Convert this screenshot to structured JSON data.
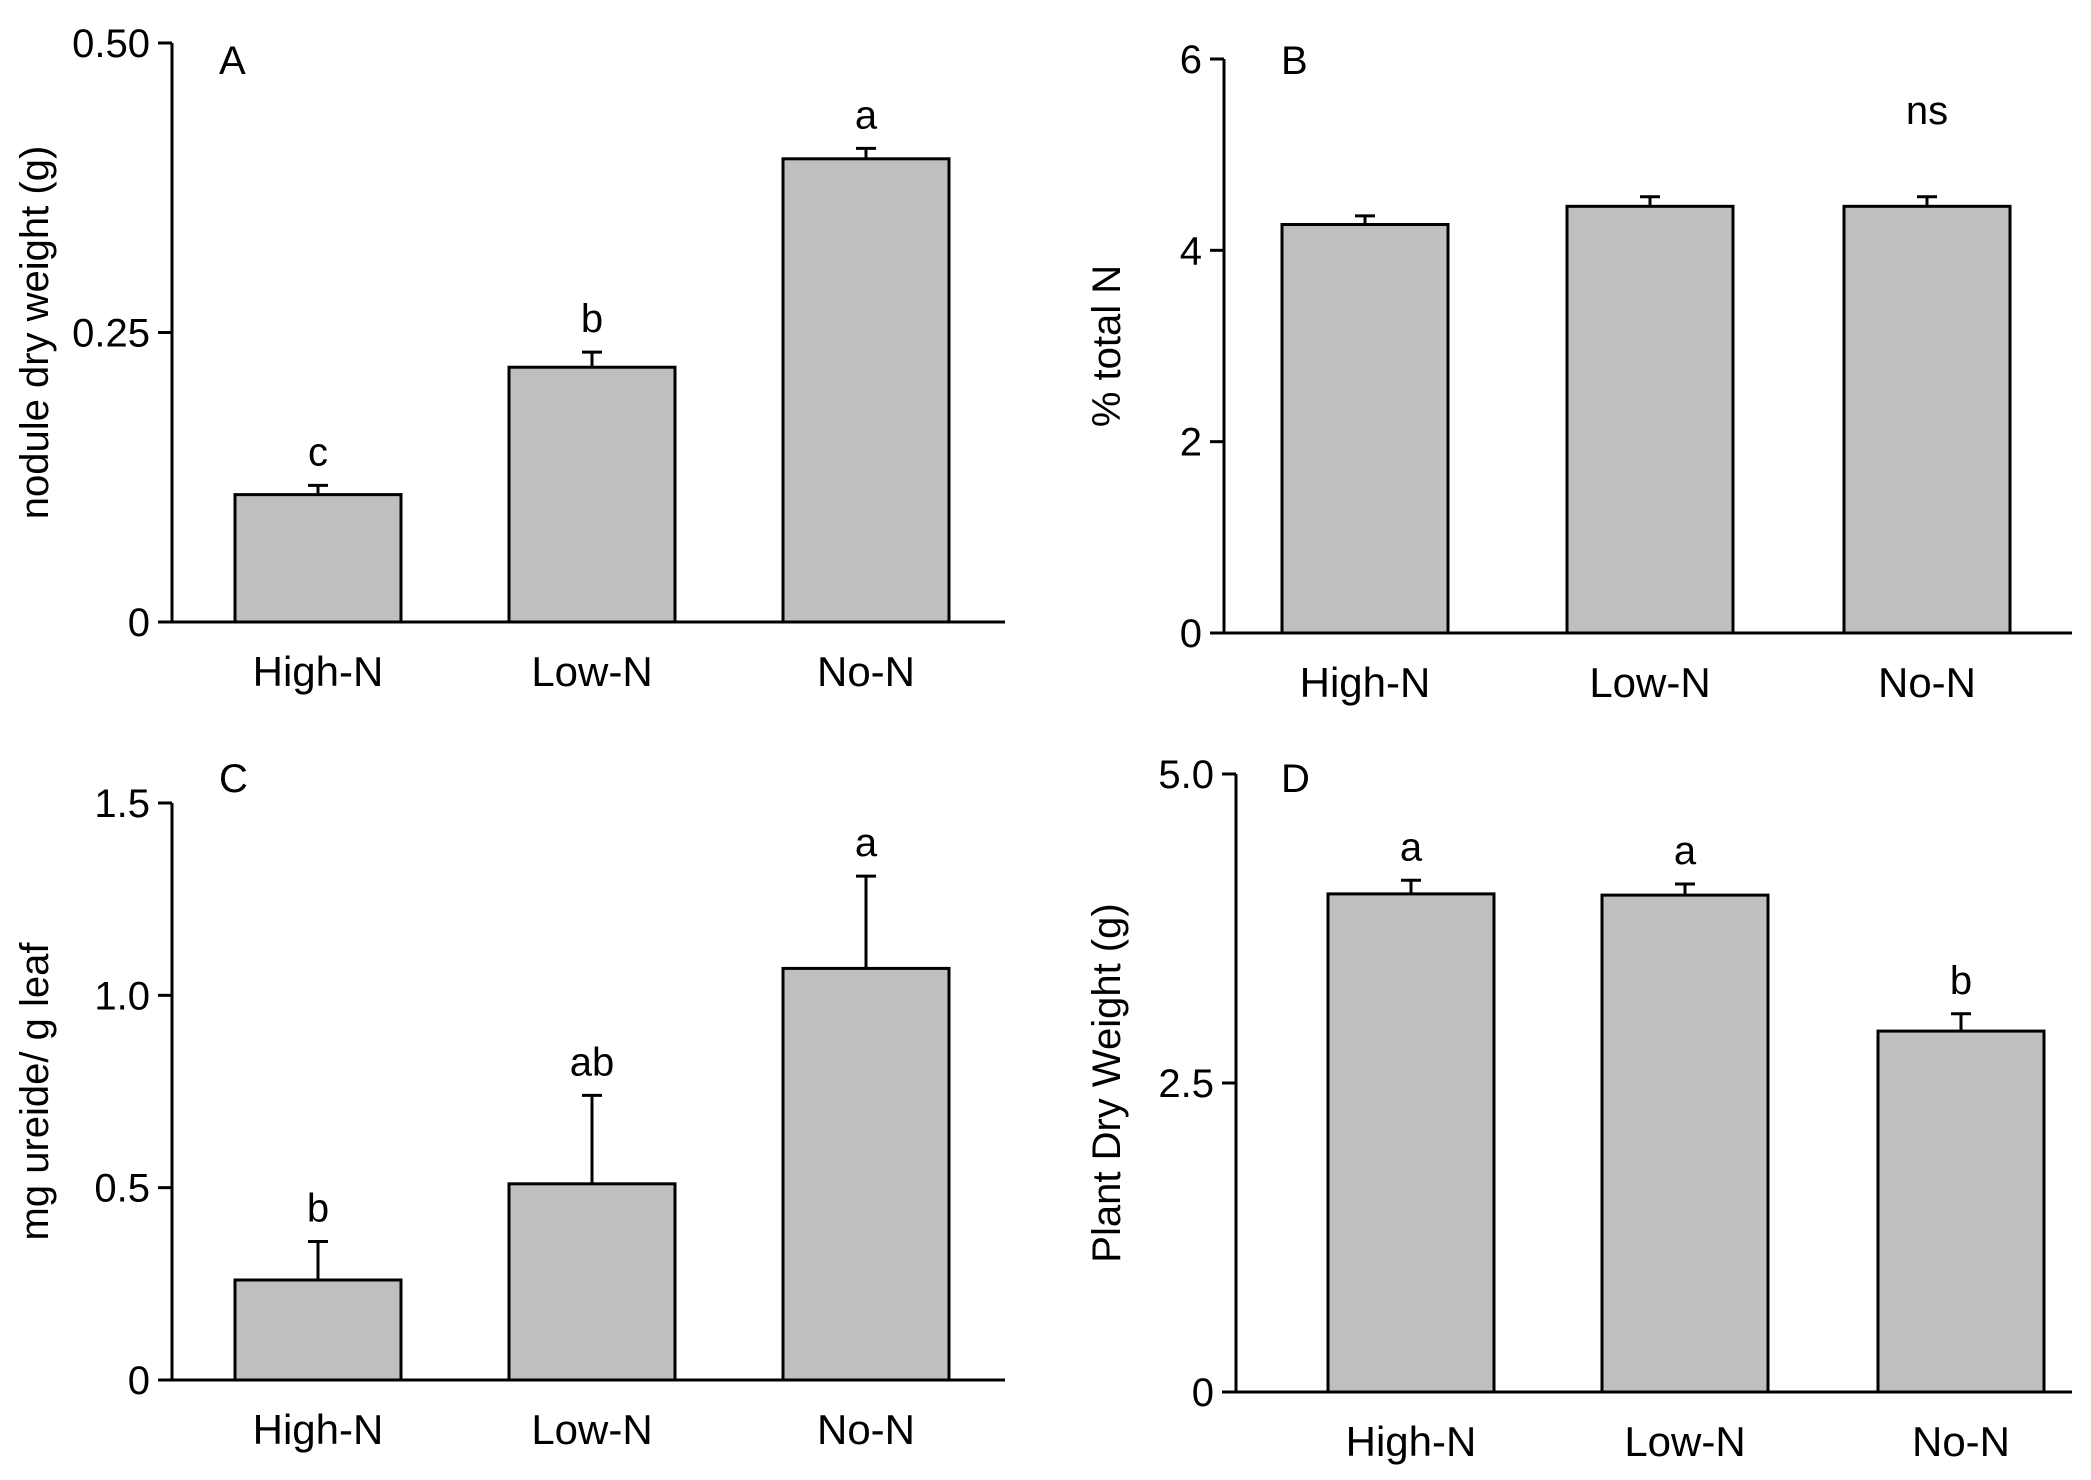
{
  "chart_data": [
    {
      "type": "bar",
      "panel": "A",
      "title": "",
      "xlabel": "",
      "ylabel": "nodule dry weight (g)",
      "categories": [
        "High-N",
        "Low-N",
        "No-N"
      ],
      "values": [
        0.11,
        0.22,
        0.4
      ],
      "errors": [
        0.008,
        0.013,
        0.009
      ],
      "significance": [
        "c",
        "b",
        "a"
      ],
      "ylim": [
        0,
        0.5
      ],
      "yticks": [
        0,
        0.25,
        0.5
      ],
      "ytick_labels": [
        "0",
        "0.25",
        "0.50"
      ],
      "grid": false
    },
    {
      "type": "bar",
      "panel": "B",
      "title": "",
      "xlabel": "",
      "ylabel": "% total N",
      "categories": [
        "High-N",
        "Low-N",
        "No-N"
      ],
      "values": [
        4.27,
        4.46,
        4.46
      ],
      "errors": [
        0.09,
        0.1,
        0.1
      ],
      "significance": [],
      "annotation": "ns",
      "ylim": [
        0,
        6
      ],
      "yticks": [
        0,
        2,
        4,
        6
      ],
      "ytick_labels": [
        "0",
        "2",
        "4",
        "6"
      ],
      "grid": false
    },
    {
      "type": "bar",
      "panel": "C",
      "title": "",
      "xlabel": "",
      "ylabel": "mg ureide/ g leaf",
      "categories": [
        "High-N",
        "Low-N",
        "No-N"
      ],
      "values": [
        0.26,
        0.51,
        1.07
      ],
      "errors": [
        0.1,
        0.23,
        0.24
      ],
      "significance": [
        "b",
        "ab",
        "a"
      ],
      "ylim": [
        0,
        1.5
      ],
      "yticks": [
        0,
        0.5,
        1.0,
        1.5
      ],
      "ytick_labels": [
        "0",
        "0.5",
        "1.0",
        "1.5"
      ],
      "grid": false
    },
    {
      "type": "bar",
      "panel": "D",
      "title": "",
      "xlabel": "",
      "ylabel": "Plant Dry Weight (g)",
      "categories": [
        "High-N",
        "Low-N",
        "No-N"
      ],
      "values": [
        4.03,
        4.02,
        2.92
      ],
      "errors": [
        0.11,
        0.09,
        0.14
      ],
      "significance": [
        "a",
        "a",
        "b"
      ],
      "ylim": [
        0,
        5
      ],
      "yticks": [
        0,
        2.5,
        5.0
      ],
      "ytick_labels": [
        "0",
        "2.5",
        "5.0"
      ],
      "grid": false
    }
  ]
}
